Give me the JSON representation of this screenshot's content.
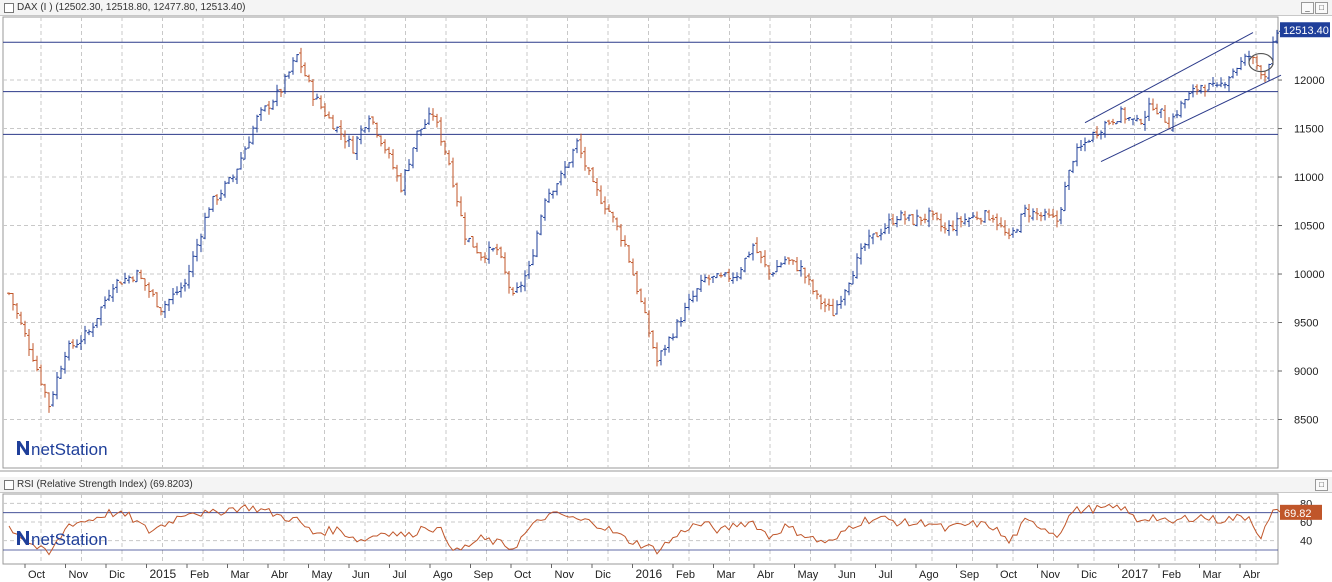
{
  "main_panel": {
    "title": "DAX (I ) (12502.30, 12518.80, 12477.80, 12513.40)",
    "last_price_label": "12513.40"
  },
  "rsi_panel": {
    "title": "RSI (Relative Strength Index) (69.8203)",
    "last_value_label": "69.82"
  },
  "watermark": "netStation",
  "window_buttons": {
    "minimize": "_",
    "maximize": "□"
  },
  "colors": {
    "up_bar": "#1f3f9a",
    "down_bar": "#c0562a",
    "rsi_line": "#c0562a",
    "price_badge": "#1f3f9a",
    "rsi_badge": "#c0562a",
    "horizontal_lines": "#2b3a8a",
    "grid": "#c8c8c8"
  },
  "chart_data": [
    {
      "type": "bar",
      "subtype": "ohlc",
      "title": "DAX (I )",
      "ohlc_last": {
        "open": 12502.3,
        "high": 12518.8,
        "low": 12477.8,
        "close": 12513.4
      },
      "y_ticks": [
        8500,
        9000,
        9500,
        10000,
        10500,
        11000,
        11500,
        12000
      ],
      "ylim": [
        8000,
        12650
      ],
      "x_tick_labels": [
        "Oct",
        "Nov",
        "Dic",
        "2015",
        "Feb",
        "Mar",
        "Abr",
        "May",
        "Jun",
        "Jul",
        "Ago",
        "Sep",
        "Oct",
        "Nov",
        "Dic",
        "2016",
        "Feb",
        "Mar",
        "Abr",
        "May",
        "Jun",
        "Jul",
        "Ago",
        "Sep",
        "Oct",
        "Nov",
        "Dic",
        "2017",
        "Feb",
        "Mar",
        "Abr"
      ],
      "path_anchors": [
        {
          "t": 0,
          "v": 9800
        },
        {
          "t": 6,
          "v": 9150
        },
        {
          "t": 10,
          "v": 8650
        },
        {
          "t": 14,
          "v": 9200
        },
        {
          "t": 20,
          "v": 9400
        },
        {
          "t": 26,
          "v": 9900
        },
        {
          "t": 32,
          "v": 10000
        },
        {
          "t": 38,
          "v": 9650
        },
        {
          "t": 44,
          "v": 9900
        },
        {
          "t": 50,
          "v": 10700
        },
        {
          "t": 56,
          "v": 11000
        },
        {
          "t": 62,
          "v": 11600
        },
        {
          "t": 68,
          "v": 11900
        },
        {
          "t": 72,
          "v": 12250
        },
        {
          "t": 76,
          "v": 11850
        },
        {
          "t": 80,
          "v": 11600
        },
        {
          "t": 86,
          "v": 11300
        },
        {
          "t": 90,
          "v": 11650
        },
        {
          "t": 94,
          "v": 11300
        },
        {
          "t": 98,
          "v": 10900
        },
        {
          "t": 102,
          "v": 11450
        },
        {
          "t": 106,
          "v": 11650
        },
        {
          "t": 110,
          "v": 11150
        },
        {
          "t": 114,
          "v": 10400
        },
        {
          "t": 118,
          "v": 10200
        },
        {
          "t": 122,
          "v": 10250
        },
        {
          "t": 126,
          "v": 9750
        },
        {
          "t": 130,
          "v": 10050
        },
        {
          "t": 134,
          "v": 10800
        },
        {
          "t": 138,
          "v": 11000
        },
        {
          "t": 142,
          "v": 11350
        },
        {
          "t": 146,
          "v": 10900
        },
        {
          "t": 150,
          "v": 10650
        },
        {
          "t": 154,
          "v": 10300
        },
        {
          "t": 158,
          "v": 9700
        },
        {
          "t": 162,
          "v": 9100
        },
        {
          "t": 166,
          "v": 9400
        },
        {
          "t": 170,
          "v": 9700
        },
        {
          "t": 174,
          "v": 9950
        },
        {
          "t": 178,
          "v": 9950
        },
        {
          "t": 182,
          "v": 10000
        },
        {
          "t": 186,
          "v": 10300
        },
        {
          "t": 190,
          "v": 10000
        },
        {
          "t": 194,
          "v": 10150
        },
        {
          "t": 198,
          "v": 10050
        },
        {
          "t": 202,
          "v": 9750
        },
        {
          "t": 206,
          "v": 9600
        },
        {
          "t": 210,
          "v": 9950
        },
        {
          "t": 214,
          "v": 10300
        },
        {
          "t": 218,
          "v": 10450
        },
        {
          "t": 222,
          "v": 10600
        },
        {
          "t": 226,
          "v": 10550
        },
        {
          "t": 230,
          "v": 10600
        },
        {
          "t": 234,
          "v": 10450
        },
        {
          "t": 238,
          "v": 10550
        },
        {
          "t": 242,
          "v": 10600
        },
        {
          "t": 246,
          "v": 10600
        },
        {
          "t": 250,
          "v": 10350
        },
        {
          "t": 254,
          "v": 10650
        },
        {
          "t": 258,
          "v": 10600
        },
        {
          "t": 262,
          "v": 10550
        },
        {
          "t": 266,
          "v": 11200
        },
        {
          "t": 270,
          "v": 11400
        },
        {
          "t": 274,
          "v": 11550
        },
        {
          "t": 278,
          "v": 11650
        },
        {
          "t": 282,
          "v": 11550
        },
        {
          "t": 286,
          "v": 11750
        },
        {
          "t": 290,
          "v": 11550
        },
        {
          "t": 294,
          "v": 11800
        },
        {
          "t": 298,
          "v": 11950
        },
        {
          "t": 302,
          "v": 11900
        },
        {
          "t": 306,
          "v": 12100
        },
        {
          "t": 310,
          "v": 12250
        },
        {
          "t": 314,
          "v": 12050
        },
        {
          "t": 316,
          "v": 12350
        },
        {
          "t": 318,
          "v": 12513
        }
      ],
      "horizontal_levels": [
        12390,
        11880,
        11440
      ],
      "trend_channel": {
        "upper": [
          {
            "t": 269,
            "v": 11560
          },
          {
            "t": 311,
            "v": 12490
          }
        ],
        "lower": [
          {
            "t": 273,
            "v": 11160
          },
          {
            "t": 318,
            "v": 12050
          }
        ]
      },
      "highlight_circle": {
        "t": 313,
        "v": 12180
      },
      "right_axis_marker": 12513.4
    },
    {
      "type": "line",
      "title": "RSI (Relative Strength Index)",
      "y_ticks": [
        40,
        60,
        80
      ],
      "ylim": [
        15,
        90
      ],
      "reference_lines": [
        70,
        30
      ],
      "last_value": 69.8203,
      "path_anchors": [
        {
          "t": 0,
          "v": 55
        },
        {
          "t": 5,
          "v": 38
        },
        {
          "t": 10,
          "v": 25
        },
        {
          "t": 15,
          "v": 58
        },
        {
          "t": 20,
          "v": 62
        },
        {
          "t": 25,
          "v": 70
        },
        {
          "t": 30,
          "v": 66
        },
        {
          "t": 35,
          "v": 50
        },
        {
          "t": 40,
          "v": 60
        },
        {
          "t": 45,
          "v": 72
        },
        {
          "t": 50,
          "v": 68
        },
        {
          "t": 55,
          "v": 74
        },
        {
          "t": 60,
          "v": 76
        },
        {
          "t": 64,
          "v": 72
        },
        {
          "t": 68,
          "v": 66
        },
        {
          "t": 72,
          "v": 62
        },
        {
          "t": 76,
          "v": 48
        },
        {
          "t": 82,
          "v": 52
        },
        {
          "t": 88,
          "v": 40
        },
        {
          "t": 94,
          "v": 50
        },
        {
          "t": 100,
          "v": 45
        },
        {
          "t": 104,
          "v": 56
        },
        {
          "t": 108,
          "v": 50
        },
        {
          "t": 112,
          "v": 28
        },
        {
          "t": 118,
          "v": 42
        },
        {
          "t": 122,
          "v": 38
        },
        {
          "t": 126,
          "v": 32
        },
        {
          "t": 130,
          "v": 52
        },
        {
          "t": 134,
          "v": 66
        },
        {
          "t": 138,
          "v": 68
        },
        {
          "t": 142,
          "v": 62
        },
        {
          "t": 146,
          "v": 60
        },
        {
          "t": 150,
          "v": 52
        },
        {
          "t": 154,
          "v": 42
        },
        {
          "t": 158,
          "v": 36
        },
        {
          "t": 162,
          "v": 30
        },
        {
          "t": 166,
          "v": 42
        },
        {
          "t": 170,
          "v": 55
        },
        {
          "t": 174,
          "v": 58
        },
        {
          "t": 178,
          "v": 50
        },
        {
          "t": 182,
          "v": 58
        },
        {
          "t": 186,
          "v": 60
        },
        {
          "t": 190,
          "v": 44
        },
        {
          "t": 194,
          "v": 55
        },
        {
          "t": 198,
          "v": 48
        },
        {
          "t": 202,
          "v": 40
        },
        {
          "t": 206,
          "v": 38
        },
        {
          "t": 210,
          "v": 55
        },
        {
          "t": 214,
          "v": 62
        },
        {
          "t": 218,
          "v": 64
        },
        {
          "t": 222,
          "v": 60
        },
        {
          "t": 226,
          "v": 58
        },
        {
          "t": 230,
          "v": 60
        },
        {
          "t": 234,
          "v": 52
        },
        {
          "t": 238,
          "v": 56
        },
        {
          "t": 242,
          "v": 58
        },
        {
          "t": 246,
          "v": 55
        },
        {
          "t": 250,
          "v": 38
        },
        {
          "t": 254,
          "v": 60
        },
        {
          "t": 258,
          "v": 56
        },
        {
          "t": 262,
          "v": 46
        },
        {
          "t": 266,
          "v": 72
        },
        {
          "t": 270,
          "v": 74
        },
        {
          "t": 274,
          "v": 74
        },
        {
          "t": 278,
          "v": 76
        },
        {
          "t": 282,
          "v": 62
        },
        {
          "t": 286,
          "v": 66
        },
        {
          "t": 290,
          "v": 58
        },
        {
          "t": 294,
          "v": 64
        },
        {
          "t": 298,
          "v": 66
        },
        {
          "t": 302,
          "v": 62
        },
        {
          "t": 306,
          "v": 64
        },
        {
          "t": 310,
          "v": 66
        },
        {
          "t": 313,
          "v": 44
        },
        {
          "t": 316,
          "v": 70
        },
        {
          "t": 318,
          "v": 69.8
        }
      ]
    }
  ]
}
